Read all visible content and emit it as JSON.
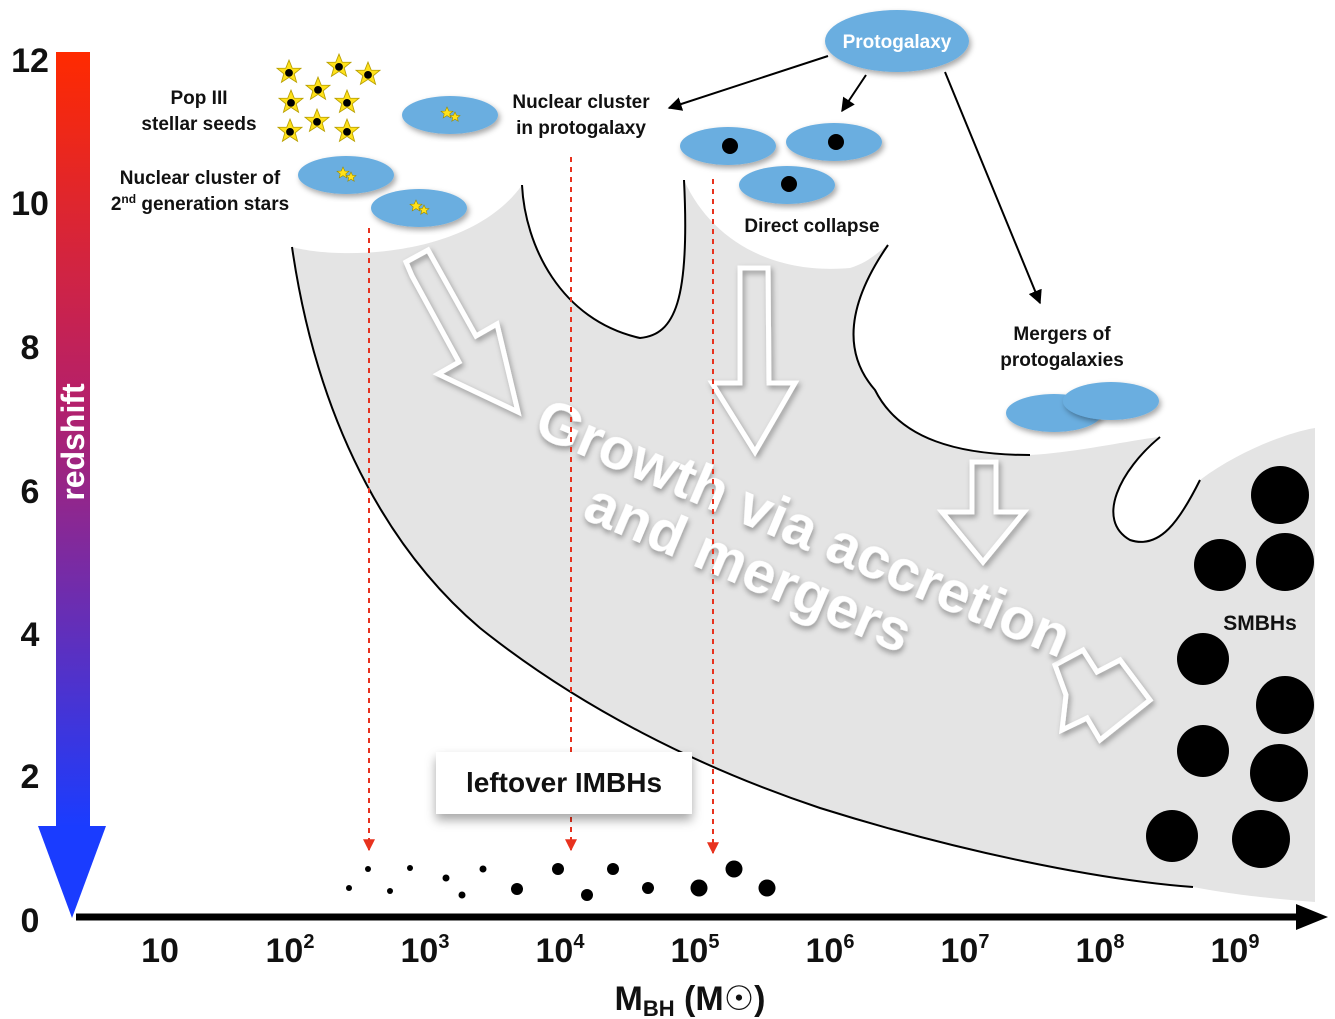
{
  "y_axis": {
    "label": "redshift",
    "ticks": [
      "12",
      "10",
      "8",
      "6",
      "4",
      "2",
      "0"
    ]
  },
  "x_axis": {
    "label_main": "M",
    "label_sub": "BH",
    "label_unit": "(M☉)",
    "ticks": [
      {
        "base": "10",
        "exp": ""
      },
      {
        "base": "10",
        "exp": "2"
      },
      {
        "base": "10",
        "exp": "3"
      },
      {
        "base": "10",
        "exp": "4"
      },
      {
        "base": "10",
        "exp": "5"
      },
      {
        "base": "10",
        "exp": "6"
      },
      {
        "base": "10",
        "exp": "7"
      },
      {
        "base": "10",
        "exp": "8"
      },
      {
        "base": "10",
        "exp": "9"
      }
    ]
  },
  "labels": {
    "protogalaxy": "Protogalaxy",
    "pop3_line1": "Pop III",
    "pop3_line2": "stellar seeds",
    "nc2_line1": "Nuclear cluster of",
    "nc2_line2_pre": "2",
    "nc2_line2_sup": "nd",
    "nc2_line2_post": " generation stars",
    "ncp_line1": "Nuclear cluster",
    "ncp_line2": "in protogalaxy",
    "direct_collapse": "Direct collapse",
    "mergers_line1": "Mergers of",
    "mergers_line2": "protogalaxies",
    "growth_line1": "Growth via accretion",
    "growth_line2": "and mergers",
    "smbhs": "SMBHs",
    "leftover": "leftover IMBHs"
  },
  "colors": {
    "redshift_high": "#ff2a00",
    "redshift_low": "#1a3cff",
    "galaxy_blue": "#6aaee0",
    "star_yellow": "#ffe11a",
    "region_gray": "#e4e4e4",
    "arrow_red": "#e8321e"
  }
}
